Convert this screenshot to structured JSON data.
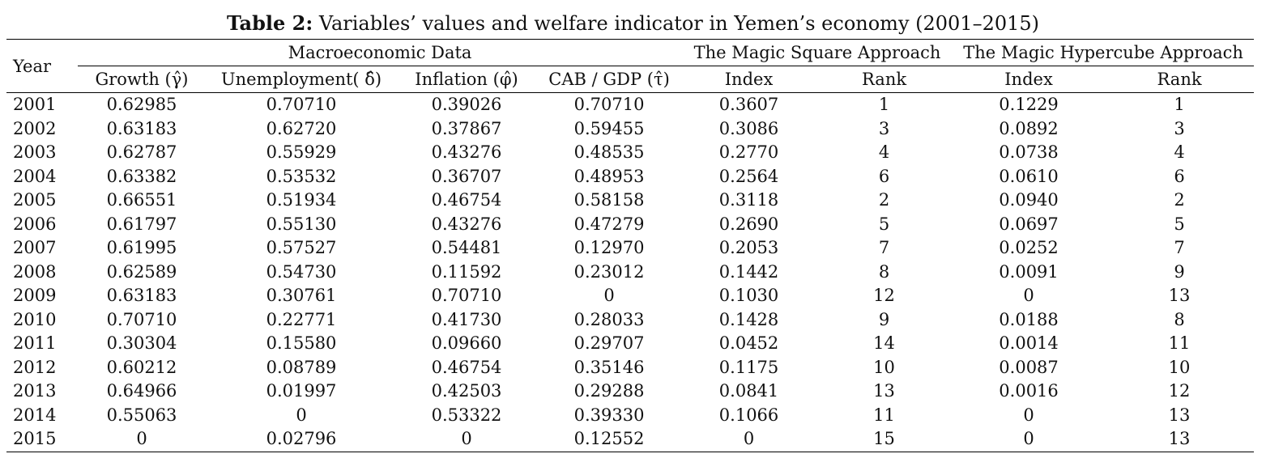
{
  "caption": {
    "label": "Table 2:",
    "text": " Variables’ values and welfare indicator in Yemen’s economy (2001–2015)"
  },
  "header": {
    "year": "Year",
    "macro_group": "Macroeconomic Data",
    "square_group": "The Magic Square Approach",
    "hypercube_group": "The Magic Hypercube Approach",
    "cols": [
      "Growth (γ̂)",
      "Unemployment( δ̂)",
      "Inflation (φ̂)",
      "CAB / GDP (τ̂)",
      "Index",
      "Rank",
      "Index",
      "Rank"
    ]
  },
  "rows": [
    [
      "2001",
      "0.62985",
      "0.70710",
      "0.39026",
      "0.70710",
      "0.3607",
      "1",
      "0.1229",
      "1"
    ],
    [
      "2002",
      "0.63183",
      "0.62720",
      "0.37867",
      "0.59455",
      "0.3086",
      "3",
      "0.0892",
      "3"
    ],
    [
      "2003",
      "0.62787",
      "0.55929",
      "0.43276",
      "0.48535",
      "0.2770",
      "4",
      "0.0738",
      "4"
    ],
    [
      "2004",
      "0.63382",
      "0.53532",
      "0.36707",
      "0.48953",
      "0.2564",
      "6",
      "0.0610",
      "6"
    ],
    [
      "2005",
      "0.66551",
      "0.51934",
      "0.46754",
      "0.58158",
      "0.3118",
      "2",
      "0.0940",
      "2"
    ],
    [
      "2006",
      "0.61797",
      "0.55130",
      "0.43276",
      "0.47279",
      "0.2690",
      "5",
      "0.0697",
      "5"
    ],
    [
      "2007",
      "0.61995",
      "0.57527",
      "0.54481",
      "0.12970",
      "0.2053",
      "7",
      "0.0252",
      "7"
    ],
    [
      "2008",
      "0.62589",
      "0.54730",
      "0.11592",
      "0.23012",
      "0.1442",
      "8",
      "0.0091",
      "9"
    ],
    [
      "2009",
      "0.63183",
      "0.30761",
      "0.70710",
      "0",
      "0.1030",
      "12",
      "0",
      "13"
    ],
    [
      "2010",
      "0.70710",
      "0.22771",
      "0.41730",
      "0.28033",
      "0.1428",
      "9",
      "0.0188",
      "8"
    ],
    [
      "2011",
      "0.30304",
      "0.15580",
      "0.09660",
      "0.29707",
      "0.0452",
      "14",
      "0.0014",
      "11"
    ],
    [
      "2012",
      "0.60212",
      "0.08789",
      "0.46754",
      "0.35146",
      "0.1175",
      "10",
      "0.0087",
      "10"
    ],
    [
      "2013",
      "0.64966",
      "0.01997",
      "0.42503",
      "0.29288",
      "0.0841",
      "13",
      "0.0016",
      "12"
    ],
    [
      "2014",
      "0.55063",
      "0",
      "0.53322",
      "0.39330",
      "0.1066",
      "11",
      "0",
      "13"
    ],
    [
      "2015",
      "0",
      "0.02796",
      "0",
      "0.12552",
      "0",
      "15",
      "0",
      "13"
    ]
  ]
}
